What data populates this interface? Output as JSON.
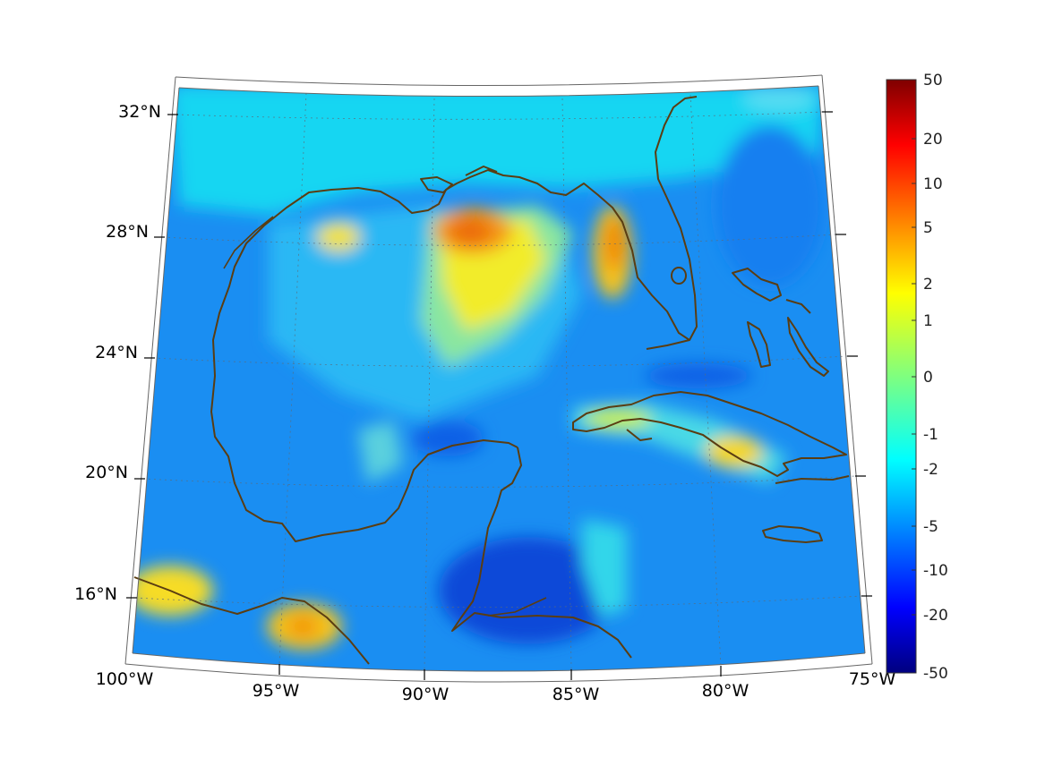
{
  "map": {
    "lon_range": [
      -100,
      -75
    ],
    "lat_range": [
      14,
      33
    ],
    "lon_labels": [
      "100°W",
      "95°W",
      "90°W",
      "85°W",
      "80°W",
      "75°W"
    ],
    "lat_labels": [
      "16°N",
      "20°N",
      "24°N",
      "28°N",
      "32°N"
    ],
    "gridlines": "dotted",
    "coastline_color": "#5a3d12",
    "field_note_colors": {
      "background": "#0a8cf0",
      "warm": "#ffd21e",
      "hot": "#f27a10"
    }
  },
  "colorbar": {
    "labels": [
      "50",
      "20",
      "10",
      "5",
      "2",
      "1",
      "0",
      "-1",
      "-2",
      "-5",
      "-10",
      "-20",
      "-50"
    ],
    "colormap": "jet",
    "position": "right"
  }
}
